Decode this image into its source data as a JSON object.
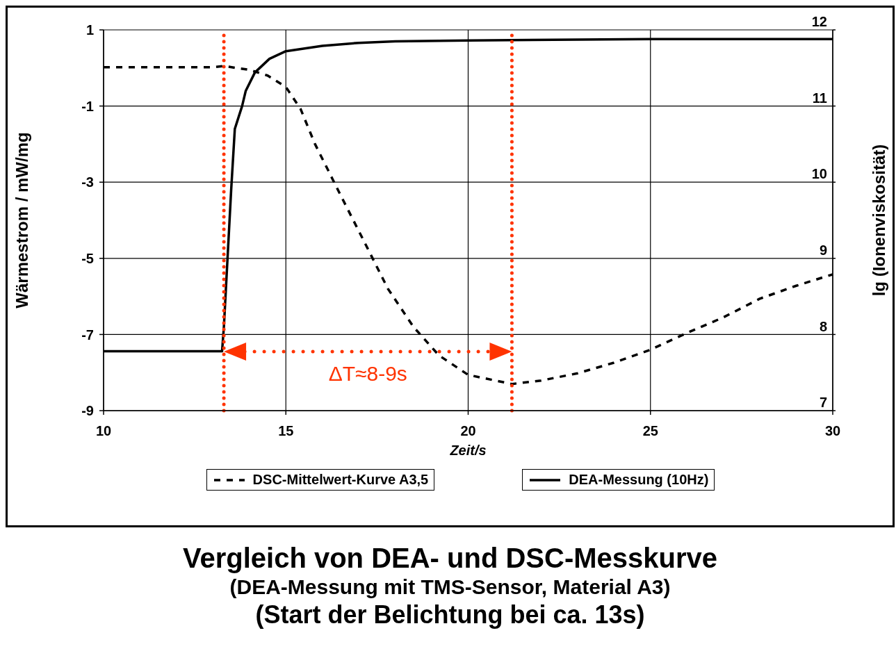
{
  "chart_data": {
    "type": "line",
    "title": "Vergleich von DEA- und DSC-Messkurve",
    "subtitle": "(DEA-Messung mit TMS-Sensor, Material A3)\n(Start der Belichtung bei ca. 13s)",
    "xlabel": "Zeit/s",
    "ylabel": "Wärmestrom / mW/mg",
    "y2label": "lg (Ionenviskosität)",
    "series": [
      {
        "name": "DSC-Mittelwert-Kurve A3,5",
        "color": "#000000",
        "line_style": "dashed",
        "x": [
          10,
          13,
          13.3,
          14,
          14.5,
          15,
          15.4,
          15.8,
          16.5,
          17.1,
          17.8,
          18.5,
          19.2,
          20,
          21.2,
          22,
          23,
          24,
          25,
          26,
          27,
          28,
          29,
          30
        ],
        "values": [
          0.02,
          0.02,
          0.05,
          -0.05,
          -0.2,
          -0.5,
          -1.07,
          -2.0,
          -3.34,
          -4.47,
          -5.8,
          -6.8,
          -7.55,
          -8.06,
          -8.3,
          -8.21,
          -8.02,
          -7.74,
          -7.4,
          -6.96,
          -6.55,
          -6.06,
          -5.72,
          -5.42
        ]
      },
      {
        "name": "DEA-Messung (10Hz)",
        "color": "#000000",
        "line_style": "solid",
        "axis": "y2",
        "x": [
          10,
          13.25,
          13.3,
          13.4,
          13.5,
          13.6,
          13.8,
          13.9,
          14.15,
          14.55,
          15,
          16,
          17,
          18,
          20,
          25,
          30
        ],
        "values": [
          7.78,
          7.78,
          8.1,
          9.0,
          9.9,
          10.7,
          11.0,
          11.2,
          11.44,
          11.62,
          11.72,
          11.79,
          11.83,
          11.85,
          11.86,
          11.88,
          11.88
        ]
      }
    ],
    "xlim": [
      10,
      30
    ],
    "xticks": [
      10,
      15,
      20,
      25,
      30
    ],
    "ylim": [
      -9,
      1
    ],
    "yticks": [
      -9,
      -7,
      -5,
      -3,
      -1,
      1
    ],
    "y2lim": [
      7,
      12
    ],
    "y2ticks": [
      7,
      8,
      9,
      10,
      11,
      12
    ],
    "ref_lines": [
      {
        "axis": "x",
        "value": 13.3,
        "color": "#ff3300",
        "line_style": "dotted"
      },
      {
        "axis": "x",
        "value": 21.2,
        "color": "#ff3300",
        "line_style": "dotted"
      }
    ],
    "annotations": [
      "ΔT≈8-9s"
    ],
    "grid": true,
    "legend": "bottom"
  }
}
